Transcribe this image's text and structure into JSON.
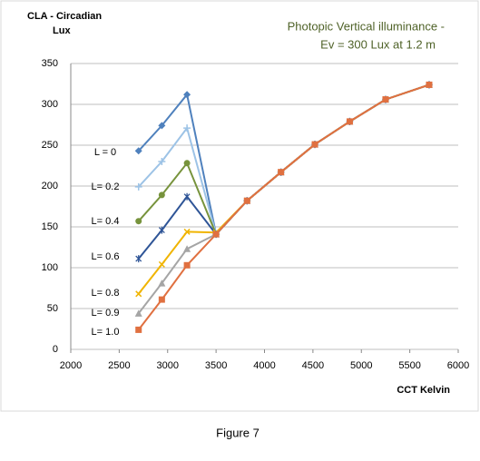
{
  "chart_data": {
    "type": "line",
    "title": [
      "Photopic Vertical illuminance -",
      "Ev = 300 Lux at 1.2 m"
    ],
    "y_label": [
      "CLA - Circadian",
      "Lux"
    ],
    "x_label": "CCT Kelvin",
    "caption": "Figure 7",
    "x": [
      2700,
      2940,
      3200,
      3500,
      3820,
      4170,
      4520,
      4880,
      5250,
      5700
    ],
    "xlim": [
      2000,
      6000
    ],
    "xticks": [
      2000,
      2500,
      3000,
      3500,
      4000,
      4500,
      5000,
      5500,
      6000
    ],
    "ylim": [
      0,
      350
    ],
    "yticks": [
      0,
      50,
      100,
      150,
      200,
      250,
      300,
      350
    ],
    "grid": true,
    "series": [
      {
        "name": "L = 0",
        "color": "#4f81bd",
        "marker": "diamond",
        "values": [
          243,
          274,
          312,
          141,
          182,
          217,
          251,
          279,
          306,
          324
        ]
      },
      {
        "name": "L= 0.2",
        "color": "#9dc3e6",
        "marker": "plus",
        "values": [
          199,
          230,
          271,
          141,
          182,
          217,
          251,
          279,
          306,
          324
        ]
      },
      {
        "name": "L= 0.4",
        "color": "#77933c",
        "marker": "circle",
        "values": [
          157,
          189,
          228,
          141,
          182,
          217,
          251,
          279,
          306,
          324
        ]
      },
      {
        "name": "L= 0.6",
        "color": "#2f5597",
        "marker": "star",
        "values": [
          111,
          146,
          187,
          141,
          182,
          217,
          251,
          279,
          306,
          324
        ]
      },
      {
        "name": "L= 0.8",
        "color": "#f0b400",
        "marker": "cross",
        "values": [
          68,
          104,
          144,
          143,
          182,
          217,
          251,
          279,
          306,
          324
        ]
      },
      {
        "name": "L= 0.9",
        "color": "#a5a5a5",
        "marker": "triangle",
        "values": [
          44,
          81,
          123,
          141,
          182,
          217,
          251,
          279,
          306,
          324
        ]
      },
      {
        "name": "L= 1.0",
        "color": "#e07040",
        "marker": "square",
        "values": [
          24,
          61,
          103,
          141,
          182,
          217,
          251,
          279,
          306,
          324
        ]
      }
    ]
  }
}
